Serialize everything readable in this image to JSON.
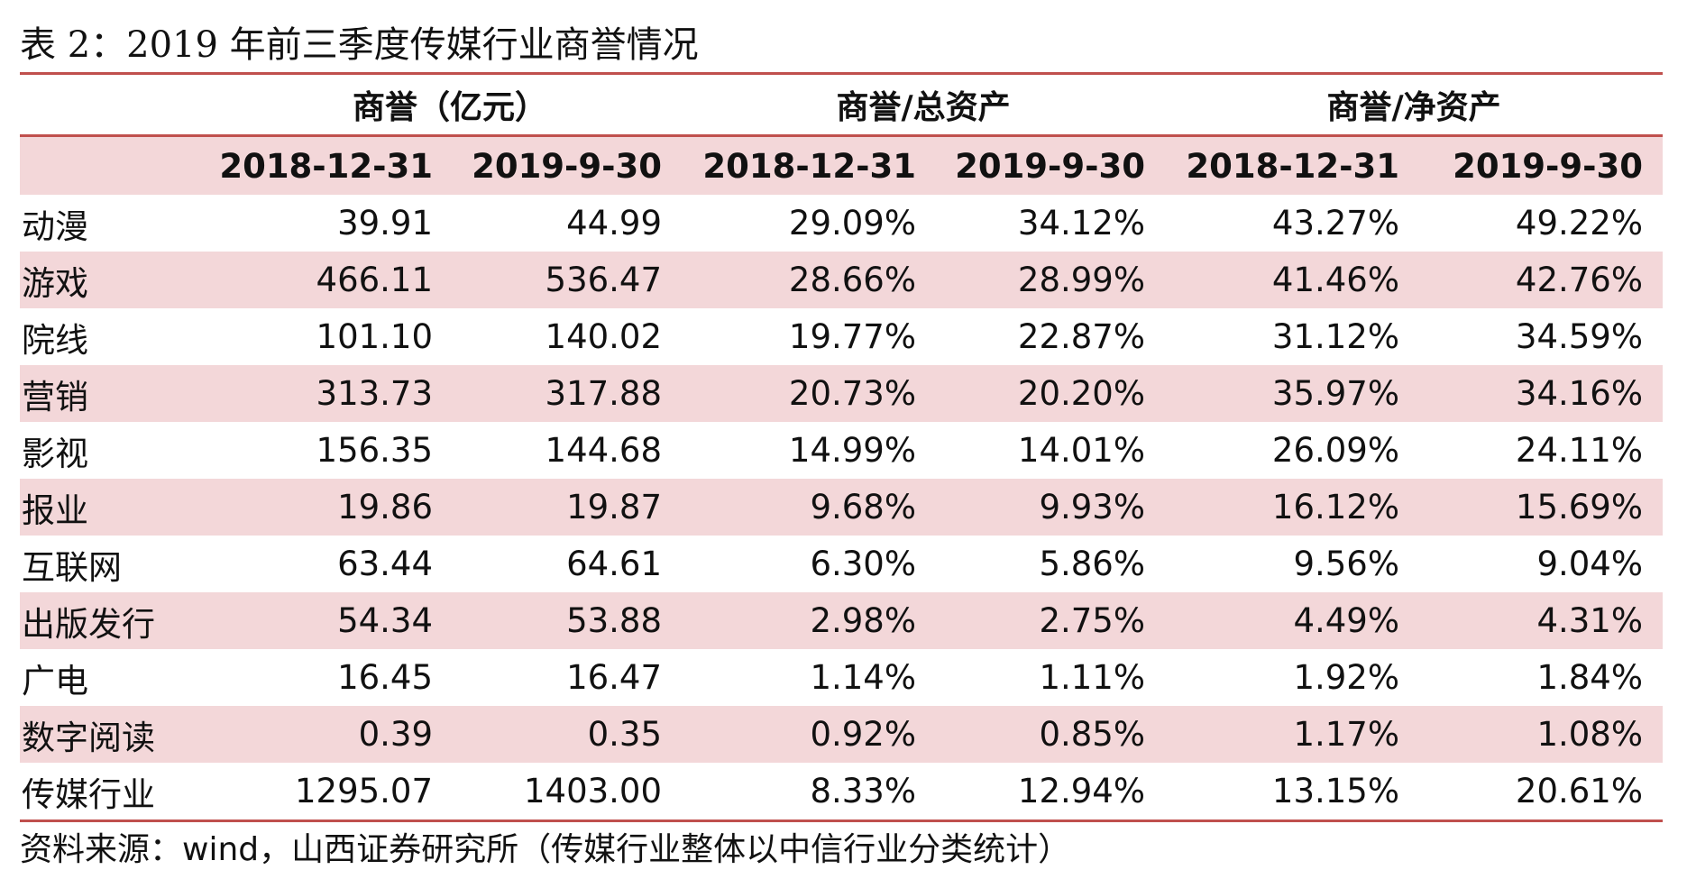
{
  "title": "表 2：2019 年前三季度传媒行业商誉情况",
  "table": {
    "group_headers": [
      "商誉（亿元）",
      "商誉/总资产",
      "商誉/净资产"
    ],
    "sub_headers": [
      "2018-12-31",
      "2019-9-30",
      "2018-12-31",
      "2019-9-30",
      "2018-12-31",
      "2019-9-30"
    ],
    "rows": [
      {
        "label": "动漫",
        "values": [
          "39.91",
          "44.99",
          "29.09%",
          "34.12%",
          "43.27%",
          "49.22%"
        ]
      },
      {
        "label": "游戏",
        "values": [
          "466.11",
          "536.47",
          "28.66%",
          "28.99%",
          "41.46%",
          "42.76%"
        ]
      },
      {
        "label": "院线",
        "values": [
          "101.10",
          "140.02",
          "19.77%",
          "22.87%",
          "31.12%",
          "34.59%"
        ]
      },
      {
        "label": "营销",
        "values": [
          "313.73",
          "317.88",
          "20.73%",
          "20.20%",
          "35.97%",
          "34.16%"
        ]
      },
      {
        "label": "影视",
        "values": [
          "156.35",
          "144.68",
          "14.99%",
          "14.01%",
          "26.09%",
          "24.11%"
        ]
      },
      {
        "label": "报业",
        "values": [
          "19.86",
          "19.87",
          "9.68%",
          "9.93%",
          "16.12%",
          "15.69%"
        ]
      },
      {
        "label": "互联网",
        "values": [
          "63.44",
          "64.61",
          "6.30%",
          "5.86%",
          "9.56%",
          "9.04%"
        ]
      },
      {
        "label": "出版发行",
        "values": [
          "54.34",
          "53.88",
          "2.98%",
          "2.75%",
          "4.49%",
          "4.31%"
        ]
      },
      {
        "label": "广电",
        "values": [
          "16.45",
          "16.47",
          "1.14%",
          "1.11%",
          "1.92%",
          "1.84%"
        ]
      },
      {
        "label": "数字阅读",
        "values": [
          "0.39",
          "0.35",
          "0.92%",
          "0.85%",
          "1.17%",
          "1.08%"
        ]
      },
      {
        "label": "传媒行业",
        "values": [
          "1295.07",
          "1403.00",
          "8.33%",
          "12.94%",
          "13.15%",
          "20.61%"
        ]
      }
    ]
  },
  "source": "资料来源：wind，山西证券研究所（传媒行业整体以中信行业分类统计）",
  "colors": {
    "accent": "#c0504d",
    "row_shade": "#f3d7d9"
  }
}
